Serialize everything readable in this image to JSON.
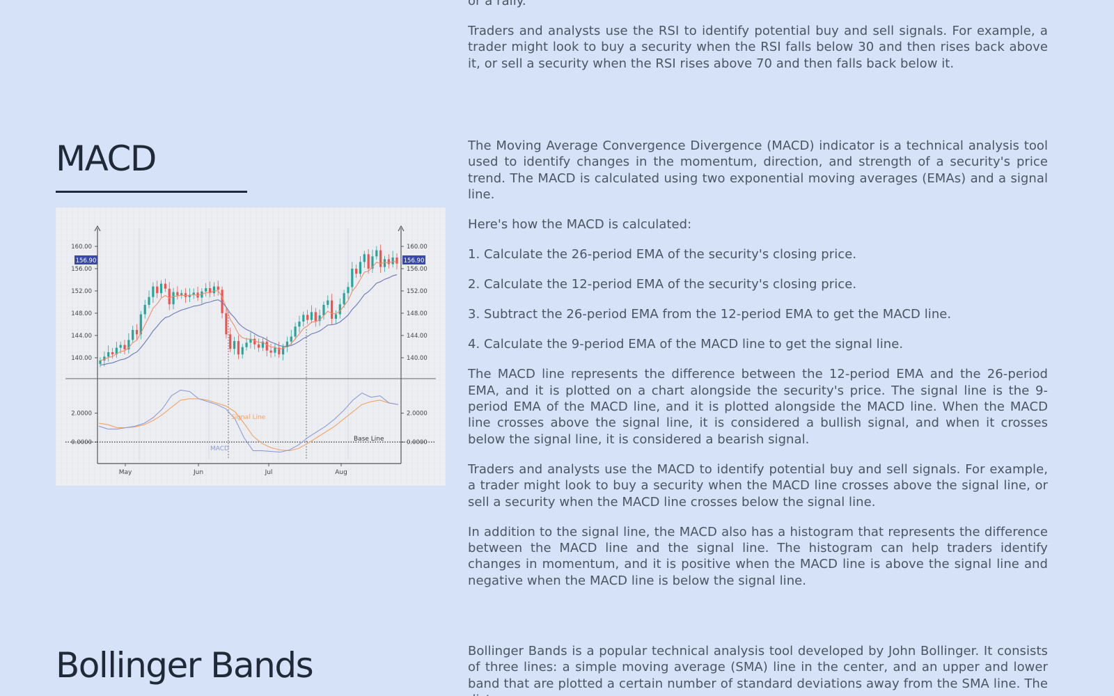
{
  "top_section": {
    "cut_line": "or a rally.",
    "paragraph": "Traders and analysts use the RSI to identify potential buy and sell signals. For example, a trader might look to buy a security when the RSI falls below 30 and then rises back above it, or sell a security when the RSI rises above 70 and then falls back below it."
  },
  "macd": {
    "title": "MACD",
    "paragraphs": [
      "The Moving Average Convergence Divergence (MACD) indicator is a technical analysis tool used to identify changes in the momentum, direction, and strength of a security's price trend. The MACD is calculated using two exponential moving averages (EMAs) and a signal line.",
      "Here's how the MACD is calculated:",
      "1. Calculate the 26-period EMA of the security's closing price.",
      "2. Calculate the 12-period EMA of the security's closing price.",
      "3. Subtract the 26-period EMA from the 12-period EMA to get the MACD line.",
      "4. Calculate the 9-period EMA of the MACD line to get the signal line.",
      "The MACD line represents the difference between the 12-period EMA and the 26-period EMA, and it is plotted on a chart alongside the security's price. The signal line is the 9-period EMA of the MACD line, and it is plotted alongside the MACD line. When the MACD line crosses above the signal line, it is considered a bullish signal, and when it crosses below the signal line, it is considered a bearish signal.",
      "Traders and analysts use the MACD to identify potential buy and sell signals. For example, a trader might look to buy a security when the MACD line crosses above the signal line, or sell a security when the MACD line crosses below the signal line.",
      "In addition to the signal line, the MACD also has a histogram that represents the difference between the MACD line and the signal line. The histogram can help traders identify changes in momentum, and it is positive when the MACD line is above the signal line and negative when the MACD line is below the signal line."
    ]
  },
  "bollinger": {
    "title": "Bollinger Bands",
    "paragraph": "Bollinger Bands is a popular technical analysis tool developed by John Bollinger. It consists of three lines: a simple moving average (SMA) line in the center, and an upper and lower band that are plotted a certain number of standard deviations away from the SMA line. The distance"
  },
  "chart_data": {
    "type": "line",
    "price_ticks": [
      "160.00",
      "156.00",
      "152.00",
      "148.00",
      "144.00",
      "140.00"
    ],
    "price_tick_values": [
      160,
      156,
      152,
      148,
      144,
      140
    ],
    "last_price_label": "156.90",
    "macd_ticks": [
      "2.0000",
      "0.0000"
    ],
    "macd_tick_values": [
      2,
      0
    ],
    "x_ticks": [
      "May",
      "Jun",
      "Jul",
      "Aug"
    ],
    "labels": {
      "signal": "Signal Line",
      "macd": "MACD",
      "base": "Base Line"
    },
    "colors": {
      "up": "#26a69a",
      "down": "#ef5350",
      "ema_fast": "#f28b6b",
      "ema_slow": "#6b78b8",
      "signal": "#f4a261",
      "macd": "#8f9bd6",
      "badge": "#3949ab"
    },
    "closes": [
      139.5,
      140.2,
      141.0,
      140.6,
      141.8,
      142.3,
      141.5,
      143.2,
      145.0,
      144.2,
      147.8,
      149.5,
      150.9,
      152.8,
      151.6,
      153.3,
      152.4,
      149.6,
      151.8,
      151.2,
      151.6,
      150.9,
      151.3,
      151.7,
      150.8,
      151.9,
      152.5,
      151.6,
      152.8,
      152.2,
      148.0,
      144.2,
      141.6,
      143.0,
      140.6,
      141.9,
      142.7,
      143.4,
      142.4,
      141.8,
      142.9,
      141.3,
      140.9,
      141.8,
      140.6,
      141.9,
      142.9,
      143.8,
      145.6,
      146.5,
      147.7,
      146.8,
      148.2,
      146.6,
      147.6,
      149.5,
      150.3,
      147.0,
      147.8,
      149.6,
      151.6,
      152.7,
      156.0,
      155.1,
      157.2,
      158.6,
      156.0,
      158.2,
      159.3,
      156.3,
      157.7,
      156.8,
      158.0,
      156.9
    ],
    "macd": [
      1.1,
      0.9,
      0.9,
      1.0,
      1.1,
      1.3,
      1.7,
      2.3,
      3.2,
      3.6,
      3.5,
      3.0,
      2.8,
      2.6,
      2.3,
      1.6,
      0.3,
      -0.6,
      -0.6,
      -0.65,
      -0.7,
      -0.55,
      -0.2,
      0.3,
      0.7,
      1.1,
      1.6,
      2.2,
      2.9,
      3.4,
      3.1,
      3.2,
      2.7,
      2.6
    ],
    "signal": [
      1.3,
      1.2,
      1.0,
      1.0,
      1.05,
      1.2,
      1.5,
      1.9,
      2.4,
      2.9,
      3.0,
      3.0,
      2.9,
      2.7,
      2.5,
      2.1,
      1.3,
      0.4,
      -0.1,
      -0.4,
      -0.55,
      -0.6,
      -0.45,
      -0.1,
      0.3,
      0.7,
      1.1,
      1.6,
      2.1,
      2.6,
      2.8,
      2.9,
      2.7,
      2.6
    ]
  }
}
